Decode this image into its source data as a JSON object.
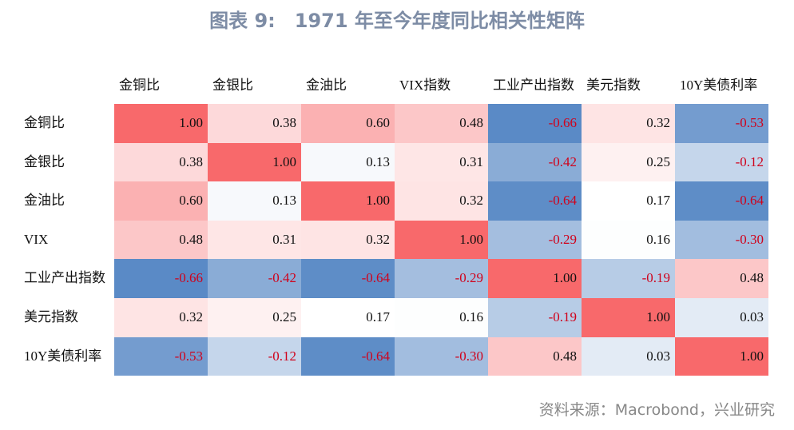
{
  "title": "图表 9:　1971 年至今年度同比相关性矩阵",
  "source": "资料来源：Macrobond，兴业研究",
  "chart_data": {
    "type": "heatmap",
    "title": "图表 9:　1971 年至今年度同比相关性矩阵",
    "columns": [
      "金铜比",
      "金银比",
      "金油比",
      "VIX指数",
      "工业产出指数",
      "美元指数",
      "10Y美债利率"
    ],
    "rows": [
      "金铜比",
      "金银比",
      "金油比",
      "VIX",
      "工业产出指数",
      "美元指数",
      "10Y美债利率"
    ],
    "values": [
      [
        1.0,
        0.38,
        0.6,
        0.48,
        -0.66,
        0.32,
        -0.53
      ],
      [
        0.38,
        1.0,
        0.13,
        0.31,
        -0.42,
        0.25,
        -0.12
      ],
      [
        0.6,
        0.13,
        1.0,
        0.32,
        -0.64,
        0.17,
        -0.64
      ],
      [
        0.48,
        0.31,
        0.32,
        1.0,
        -0.29,
        0.16,
        -0.3
      ],
      [
        -0.66,
        -0.42,
        -0.64,
        -0.29,
        1.0,
        -0.19,
        0.48
      ],
      [
        0.32,
        0.25,
        0.17,
        0.16,
        -0.19,
        1.0,
        0.03
      ],
      [
        -0.53,
        -0.12,
        -0.64,
        -0.3,
        0.48,
        0.03,
        1.0
      ]
    ],
    "color_scale": {
      "low": "#5a8ac6",
      "mid": "#ffffff",
      "high": "#f8696b"
    },
    "negative_text_color": "#d0021b"
  }
}
